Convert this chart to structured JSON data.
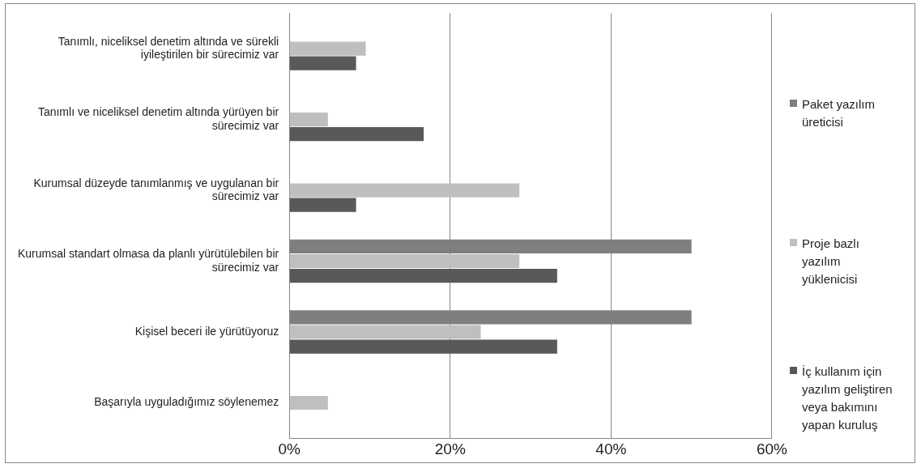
{
  "chart_data": {
    "type": "bar",
    "orientation": "horizontal",
    "categories": [
      "Tanımlı, niceliksel denetim altında ve sürekli iyileştirilen bir sürecimiz var",
      "Tanımlı ve niceliksel denetim altında yürüyen bir sürecimiz var",
      "Kurumsal düzeyde tanımlanmış ve uygulanan bir sürecimiz var",
      "Kurumsal standart olmasa da planlı yürütülebilen bir sürecimiz var",
      "Kişisel beceri ile yürütüyoruz",
      "Başarıyla uyguladığımız söylenemez"
    ],
    "series": [
      {
        "name": "Paket yazılım üreticisi",
        "color": "#7f7f7f",
        "values": [
          0,
          0,
          0,
          50,
          50,
          0
        ]
      },
      {
        "name": "Proje bazlı yazılım yüklenicisi",
        "color": "#bfbfbf",
        "values": [
          9.5,
          4.8,
          28.6,
          28.6,
          23.8,
          4.8
        ]
      },
      {
        "name": "İç kullanım için yazılım geliştiren veya bakımını yapan kuruluş",
        "color": "#595959",
        "values": [
          8.3,
          16.7,
          8.3,
          33.3,
          33.3,
          0
        ]
      }
    ],
    "xlim": [
      0,
      60
    ],
    "xticks": [
      {
        "value": 0,
        "label": "0%"
      },
      {
        "value": 20,
        "label": "20%"
      },
      {
        "value": 40,
        "label": "40%"
      },
      {
        "value": 60,
        "label": "60%"
      }
    ],
    "grid": "x",
    "legend": "right"
  }
}
